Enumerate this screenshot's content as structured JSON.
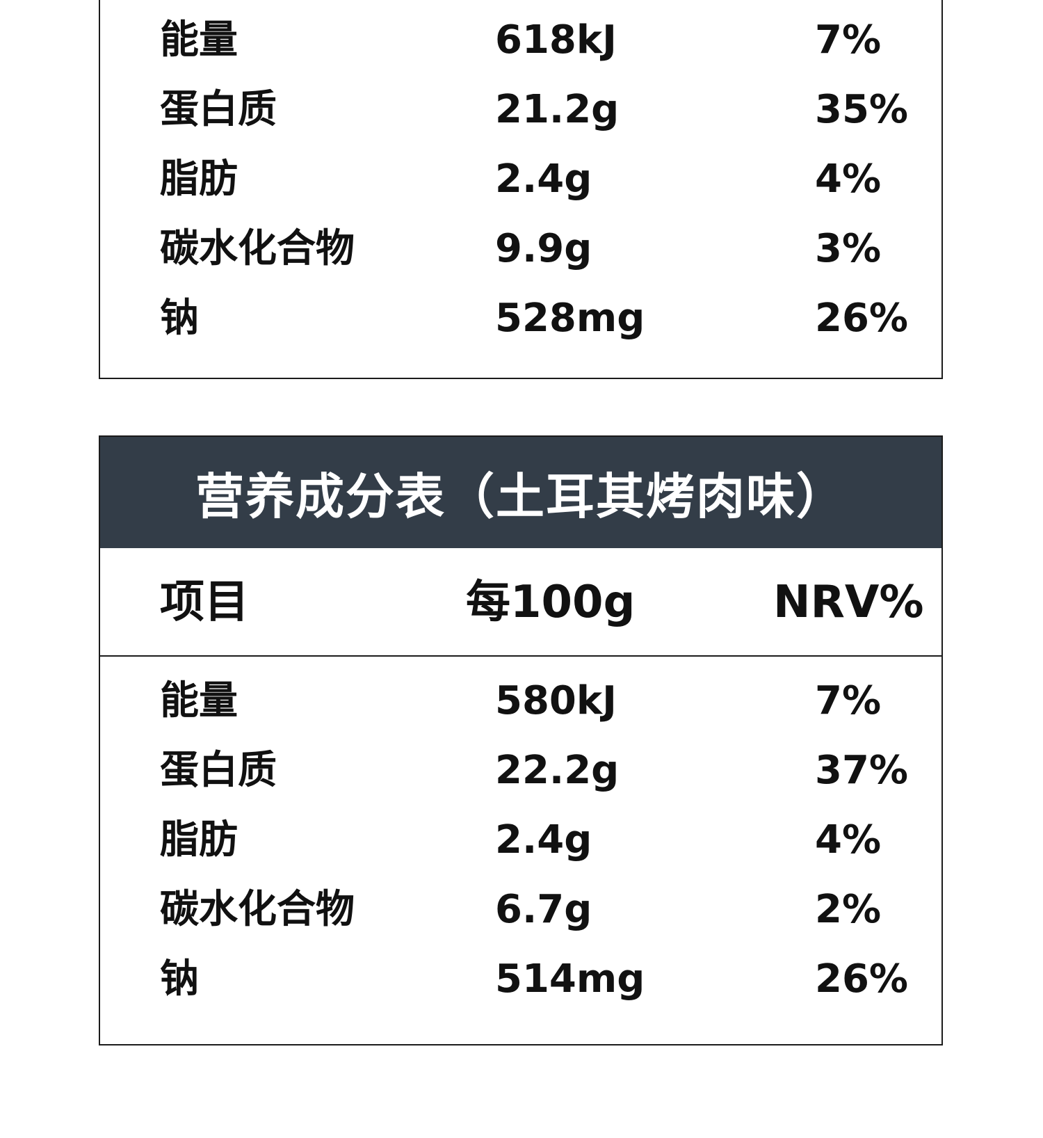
{
  "top_table": {
    "rows": [
      {
        "name": "能量",
        "value": "618kJ",
        "nrv": "7%"
      },
      {
        "name": "蛋白质",
        "value": "21.2g",
        "nrv": "35%"
      },
      {
        "name": "脂肪",
        "value": "2.4g",
        "nrv": "4%"
      },
      {
        "name": "碳水化合物",
        "value": "9.9g",
        "nrv": "3%"
      },
      {
        "name": "钠",
        "value": "528mg",
        "nrv": "26%"
      }
    ]
  },
  "bottom_table": {
    "title": "营养成分表（土耳其烤肉味）",
    "columns": {
      "item": "项目",
      "per": "每100g",
      "nrv": "NRV%"
    },
    "rows": [
      {
        "name": "能量",
        "value": "580kJ",
        "nrv": "7%"
      },
      {
        "name": "蛋白质",
        "value": "22.2g",
        "nrv": "37%"
      },
      {
        "name": "脂肪",
        "value": "2.4g",
        "nrv": "4%"
      },
      {
        "name": "碳水化合物",
        "value": "6.7g",
        "nrv": "2%"
      },
      {
        "name": "钠",
        "value": "514mg",
        "nrv": "26%"
      }
    ]
  },
  "colors": {
    "header_bg": "#333d48",
    "border": "#1b1b1b",
    "text": "#111111"
  }
}
